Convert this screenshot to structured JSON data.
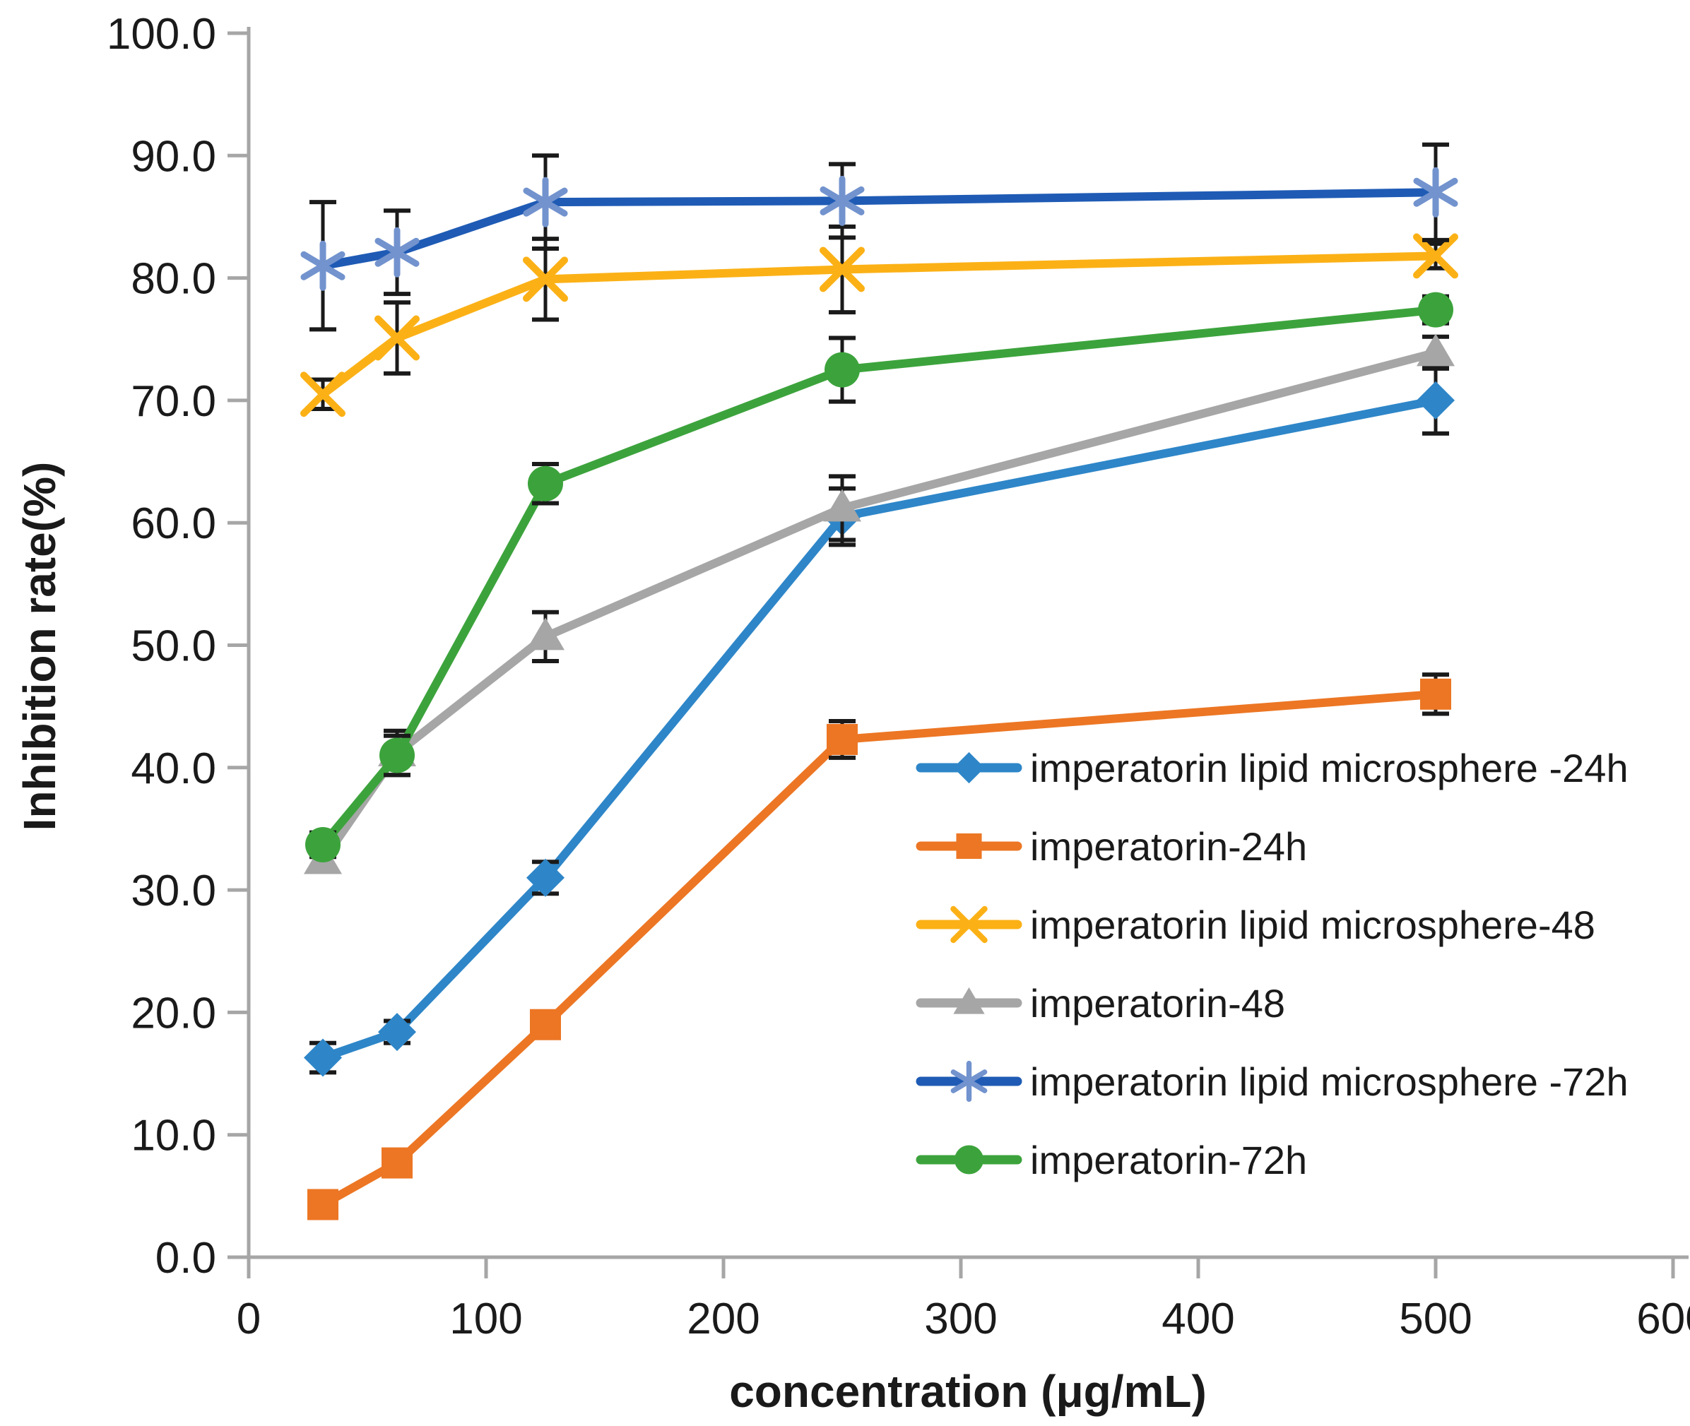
{
  "chart_data": {
    "type": "line",
    "title": "",
    "xlabel": "concentration (μg/mL)",
    "ylabel": "Inhibition rate(%)",
    "x": [
      31.25,
      62.5,
      125,
      250,
      500
    ],
    "xlim": [
      0,
      600
    ],
    "ylim": [
      0,
      100
    ],
    "x_ticks": [
      0,
      100,
      200,
      300,
      400,
      500,
      600
    ],
    "y_ticks": [
      0,
      10,
      20,
      30,
      40,
      50,
      60,
      70,
      80,
      90,
      100
    ],
    "y_tick_format_decimals": 1,
    "grid": false,
    "legend_position": "right-middle",
    "error_bar_color": "#1a1a1a",
    "axis_color": "#a6a6a6",
    "series": [
      {
        "name": "imperatorin lipid microsphere -24h",
        "marker": "diamond",
        "color": "#2e86c8",
        "marker_color": "#2e86c8",
        "values": [
          16.3,
          18.4,
          31.0,
          60.5,
          70.0
        ],
        "errors": [
          1.2,
          0.9,
          1.3,
          2.3,
          2.7
        ]
      },
      {
        "name": "imperatorin-24h",
        "marker": "square",
        "color": "#ec7624",
        "marker_color": "#ec7624",
        "values": [
          4.3,
          7.7,
          19.0,
          42.3,
          46.0
        ],
        "errors": [
          0.5,
          0.5,
          1.0,
          1.5,
          1.6
        ]
      },
      {
        "name": "imperatorin lipid microsphere-48",
        "marker": "x-cross",
        "color": "#fbb116",
        "marker_color": "#fbb116",
        "values": [
          70.5,
          75.1,
          79.9,
          80.7,
          81.8
        ],
        "errors": [
          1.2,
          2.9,
          3.3,
          3.5,
          1.0
        ]
      },
      {
        "name": "imperatorin-48",
        "marker": "triangle",
        "color": "#a6a6a6",
        "marker_color": "#a6a6a6",
        "values": [
          32.4,
          41.2,
          50.7,
          61.2,
          73.9
        ],
        "errors": [
          0.8,
          1.8,
          2.0,
          2.6,
          1.3
        ]
      },
      {
        "name": "imperatorin lipid microsphere -72h",
        "marker": "asterisk",
        "color": "#1f5bb5",
        "marker_color": "#7293ce",
        "values": [
          81.0,
          82.1,
          86.2,
          86.3,
          87.0
        ],
        "errors": [
          5.2,
          3.4,
          3.8,
          3.0,
          3.9
        ]
      },
      {
        "name": "imperatorin-72h",
        "marker": "circle",
        "color": "#3ca33c",
        "marker_color": "#3ca33c",
        "values": [
          33.7,
          41.0,
          63.2,
          72.5,
          77.4
        ],
        "errors": [
          1.0,
          1.6,
          1.6,
          2.6,
          1.1
        ]
      }
    ]
  }
}
